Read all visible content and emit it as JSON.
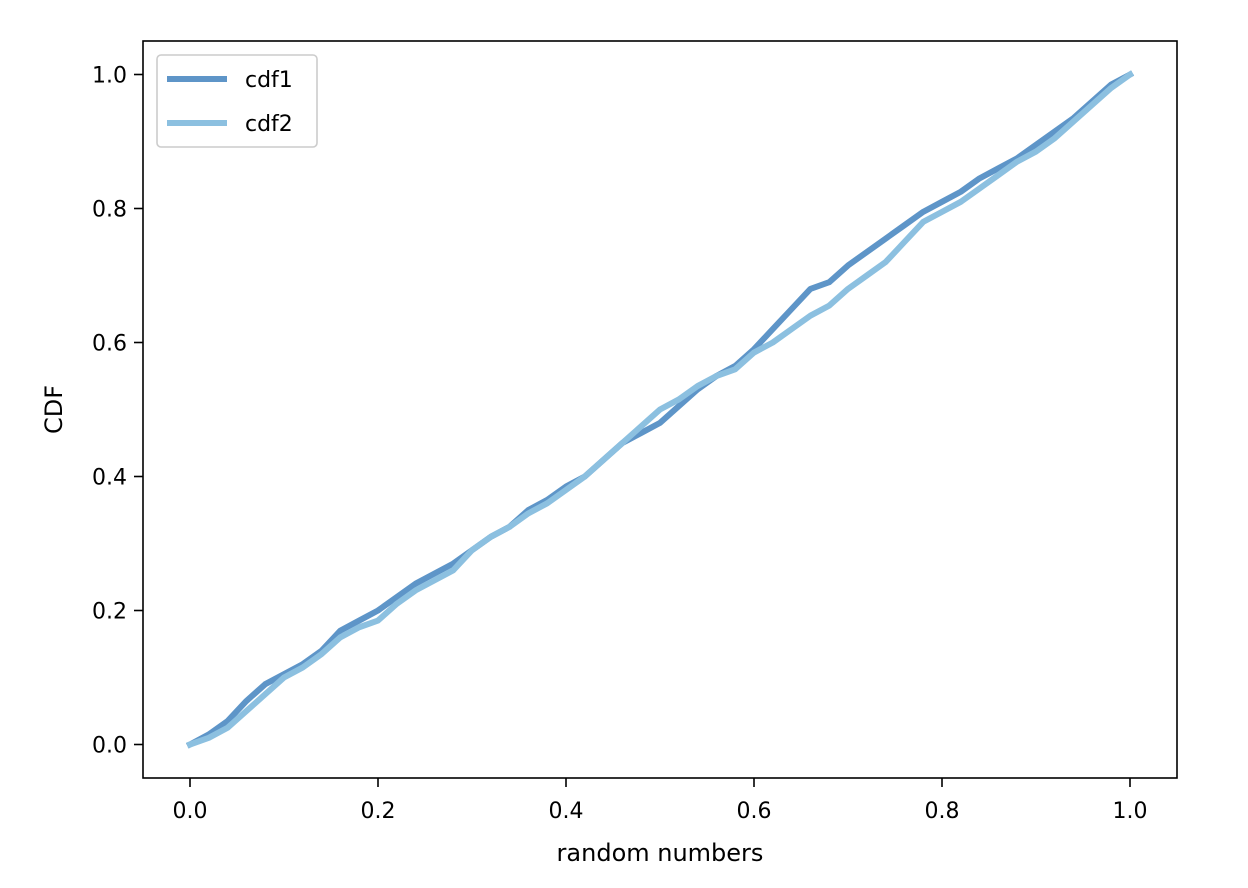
{
  "chart_data": {
    "type": "line",
    "title": "",
    "xlabel": "random numbers",
    "ylabel": "CDF",
    "xlim": [
      -0.05,
      1.05
    ],
    "ylim": [
      -0.05,
      1.05
    ],
    "x_ticks": [
      0.0,
      0.2,
      0.4,
      0.6,
      0.8,
      1.0
    ],
    "x_tick_labels": [
      "0.0",
      "0.2",
      "0.4",
      "0.6",
      "0.8",
      "1.0"
    ],
    "y_ticks": [
      0.0,
      0.2,
      0.4,
      0.6,
      0.8,
      1.0
    ],
    "y_tick_labels": [
      "0.0",
      "0.2",
      "0.4",
      "0.6",
      "0.8",
      "1.0"
    ],
    "grid": false,
    "legend_position": "top-left",
    "series": [
      {
        "name": "cdf1",
        "color": "#5e95c8",
        "x": [
          0.0,
          0.02,
          0.04,
          0.06,
          0.08,
          0.1,
          0.12,
          0.14,
          0.16,
          0.18,
          0.2,
          0.22,
          0.24,
          0.26,
          0.28,
          0.3,
          0.32,
          0.34,
          0.36,
          0.38,
          0.4,
          0.42,
          0.44,
          0.46,
          0.48,
          0.5,
          0.52,
          0.54,
          0.56,
          0.58,
          0.6,
          0.62,
          0.64,
          0.66,
          0.68,
          0.7,
          0.72,
          0.74,
          0.76,
          0.78,
          0.8,
          0.82,
          0.84,
          0.86,
          0.88,
          0.9,
          0.92,
          0.94,
          0.96,
          0.98,
          1.0
        ],
        "y": [
          0.0,
          0.015,
          0.035,
          0.065,
          0.09,
          0.105,
          0.12,
          0.14,
          0.17,
          0.185,
          0.2,
          0.22,
          0.24,
          0.255,
          0.27,
          0.29,
          0.31,
          0.325,
          0.35,
          0.365,
          0.385,
          0.4,
          0.425,
          0.45,
          0.465,
          0.48,
          0.505,
          0.53,
          0.55,
          0.565,
          0.59,
          0.62,
          0.65,
          0.68,
          0.69,
          0.715,
          0.735,
          0.755,
          0.775,
          0.795,
          0.81,
          0.825,
          0.845,
          0.86,
          0.875,
          0.895,
          0.915,
          0.935,
          0.96,
          0.985,
          1.0
        ]
      },
      {
        "name": "cdf2",
        "color": "#8cc0e0",
        "x": [
          0.0,
          0.02,
          0.04,
          0.06,
          0.08,
          0.1,
          0.12,
          0.14,
          0.16,
          0.18,
          0.2,
          0.22,
          0.24,
          0.26,
          0.28,
          0.3,
          0.32,
          0.34,
          0.36,
          0.38,
          0.4,
          0.42,
          0.44,
          0.46,
          0.48,
          0.5,
          0.52,
          0.54,
          0.56,
          0.58,
          0.6,
          0.62,
          0.64,
          0.66,
          0.68,
          0.7,
          0.72,
          0.74,
          0.76,
          0.78,
          0.8,
          0.82,
          0.84,
          0.86,
          0.88,
          0.9,
          0.92,
          0.94,
          0.96,
          0.98,
          1.0
        ],
        "y": [
          0.0,
          0.01,
          0.025,
          0.05,
          0.075,
          0.1,
          0.115,
          0.135,
          0.16,
          0.175,
          0.185,
          0.21,
          0.23,
          0.245,
          0.26,
          0.29,
          0.31,
          0.325,
          0.345,
          0.36,
          0.38,
          0.4,
          0.425,
          0.45,
          0.475,
          0.5,
          0.515,
          0.535,
          0.55,
          0.56,
          0.585,
          0.6,
          0.62,
          0.64,
          0.655,
          0.68,
          0.7,
          0.72,
          0.75,
          0.78,
          0.795,
          0.81,
          0.83,
          0.85,
          0.87,
          0.885,
          0.905,
          0.93,
          0.955,
          0.98,
          1.0
        ]
      }
    ]
  }
}
